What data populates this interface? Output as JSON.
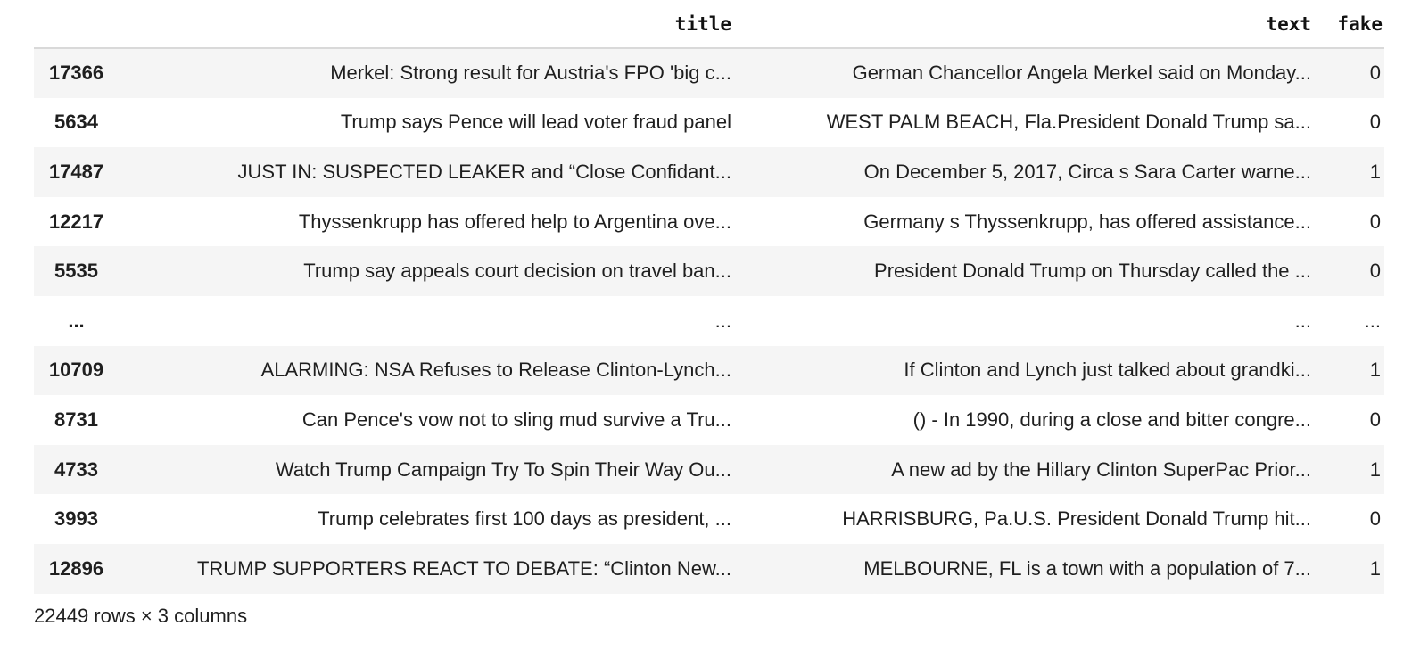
{
  "dataframe": {
    "columns": [
      "title",
      "text",
      "fake"
    ],
    "rows": [
      {
        "index": "17366",
        "title": "Merkel: Strong result for Austria's FPO 'big c...",
        "text": "German Chancellor Angela Merkel said on Monday...",
        "fake": "0"
      },
      {
        "index": "5634",
        "title": "Trump says Pence will lead voter fraud panel",
        "text": "WEST PALM BEACH, Fla.President Donald Trump sa...",
        "fake": "0"
      },
      {
        "index": "17487",
        "title": "JUST IN: SUSPECTED LEAKER and “Close Confidant...",
        "text": "On December 5, 2017, Circa s Sara Carter warne...",
        "fake": "1"
      },
      {
        "index": "12217",
        "title": "Thyssenkrupp has offered help to Argentina ove...",
        "text": "Germany s Thyssenkrupp, has offered assistance...",
        "fake": "0"
      },
      {
        "index": "5535",
        "title": "Trump say appeals court decision on travel ban...",
        "text": "President Donald Trump on Thursday called the ...",
        "fake": "0"
      },
      {
        "index": "...",
        "title": "...",
        "text": "...",
        "fake": "..."
      },
      {
        "index": "10709",
        "title": "ALARMING: NSA Refuses to Release Clinton-Lynch...",
        "text": "If Clinton and Lynch just talked about grandki...",
        "fake": "1"
      },
      {
        "index": "8731",
        "title": "Can Pence's vow not to sling mud survive a Tru...",
        "text": "() - In 1990, during a close and bitter congre...",
        "fake": "0"
      },
      {
        "index": "4733",
        "title": "Watch Trump Campaign Try To Spin Their Way Ou...",
        "text": "A new ad by the Hillary Clinton SuperPac Prior...",
        "fake": "1"
      },
      {
        "index": "3993",
        "title": "Trump celebrates first 100 days as president, ...",
        "text": "HARRISBURG, Pa.U.S. President Donald Trump hit...",
        "fake": "0"
      },
      {
        "index": "12896",
        "title": "TRUMP SUPPORTERS REACT TO DEBATE: “Clinton New...",
        "text": "MELBOURNE, FL is a town with a population of 7...",
        "fake": "1"
      }
    ],
    "shape_text": "22449 rows × 3 columns"
  },
  "colors": {
    "row_odd": "#f5f5f5",
    "row_even": "#ffffff",
    "header_rule": "#d9d9d9",
    "text": "#1f1f1f"
  }
}
